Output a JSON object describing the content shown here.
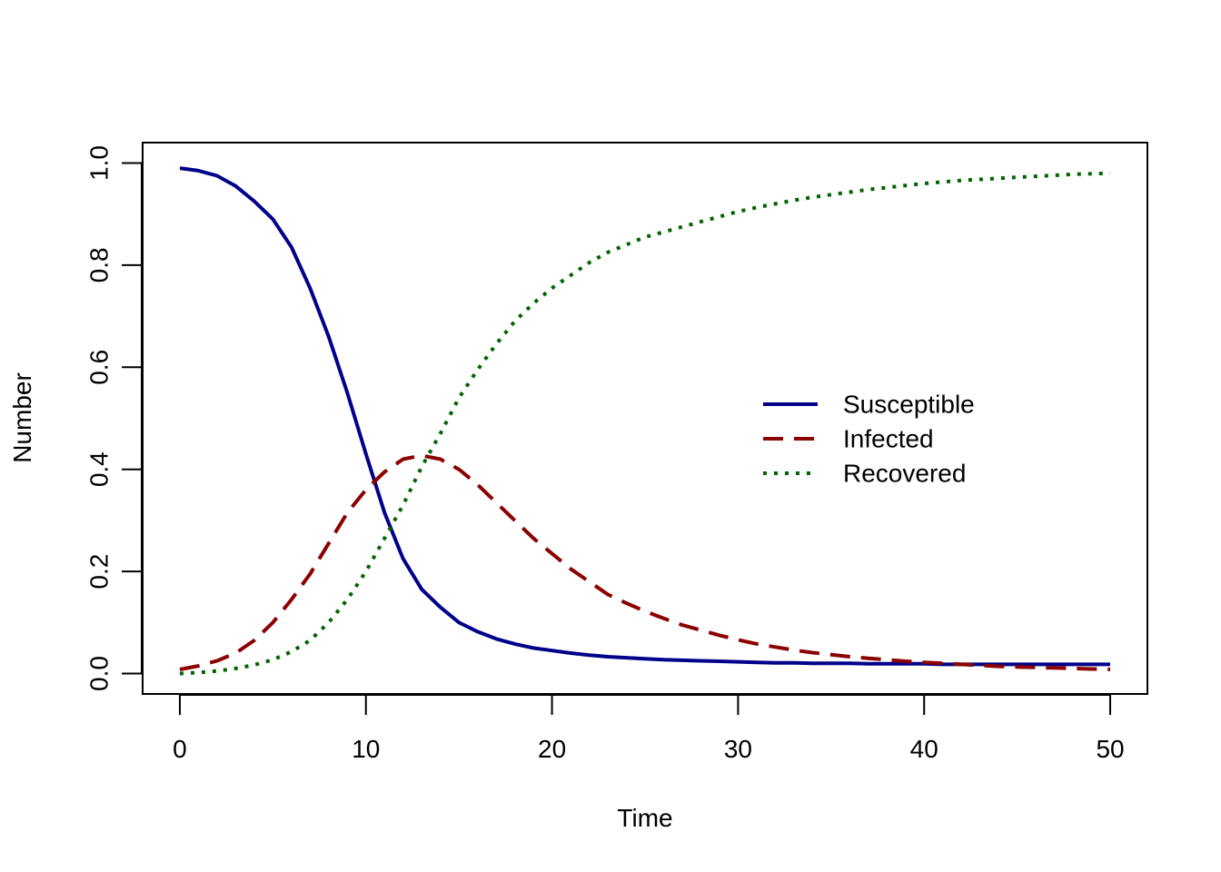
{
  "chart_data": {
    "type": "line",
    "title": "",
    "xlabel": "Time",
    "ylabel": "Number",
    "xlim": [
      -2,
      52
    ],
    "ylim": [
      -0.04,
      1.04
    ],
    "xticks": [
      0,
      10,
      20,
      30,
      40,
      50
    ],
    "xtick_labels": [
      "0",
      "10",
      "20",
      "30",
      "40",
      "50"
    ],
    "yticks": [
      0.0,
      0.2,
      0.4,
      0.6,
      0.8,
      1.0
    ],
    "ytick_labels": [
      "0.0",
      "0.2",
      "0.4",
      "0.6",
      "0.8",
      "1.0"
    ],
    "grid": false,
    "legend_position": "right",
    "x": [
      0,
      1,
      2,
      3,
      4,
      5,
      6,
      7,
      8,
      9,
      10,
      11,
      12,
      13,
      14,
      15,
      16,
      17,
      18,
      19,
      20,
      21,
      22,
      23,
      24,
      25,
      26,
      27,
      28,
      29,
      30,
      31,
      32,
      33,
      34,
      35,
      36,
      37,
      38,
      39,
      40,
      41,
      42,
      43,
      44,
      45,
      46,
      47,
      48,
      49,
      50
    ],
    "series": [
      {
        "name": "Susceptible",
        "color": "#00008B",
        "dash": "solid",
        "values": [
          0.99,
          0.985,
          0.975,
          0.955,
          0.925,
          0.89,
          0.835,
          0.755,
          0.66,
          0.55,
          0.43,
          0.315,
          0.225,
          0.165,
          0.13,
          0.1,
          0.082,
          0.068,
          0.058,
          0.05,
          0.045,
          0.04,
          0.036,
          0.033,
          0.031,
          0.029,
          0.027,
          0.026,
          0.025,
          0.024,
          0.023,
          0.022,
          0.021,
          0.021,
          0.02,
          0.02,
          0.02,
          0.019,
          0.019,
          0.019,
          0.019,
          0.018,
          0.018,
          0.018,
          0.018,
          0.018,
          0.018,
          0.018,
          0.018,
          0.018,
          0.018
        ]
      },
      {
        "name": "Infected",
        "color": "#8B0000",
        "dash": "dashed",
        "values": [
          0.008,
          0.015,
          0.025,
          0.04,
          0.065,
          0.1,
          0.145,
          0.195,
          0.255,
          0.315,
          0.36,
          0.395,
          0.42,
          0.427,
          0.42,
          0.4,
          0.37,
          0.335,
          0.3,
          0.265,
          0.235,
          0.205,
          0.18,
          0.155,
          0.138,
          0.122,
          0.108,
          0.095,
          0.085,
          0.075,
          0.066,
          0.058,
          0.052,
          0.046,
          0.041,
          0.037,
          0.033,
          0.03,
          0.027,
          0.024,
          0.022,
          0.02,
          0.018,
          0.016,
          0.014,
          0.013,
          0.012,
          0.011,
          0.01,
          0.009,
          0.008
        ]
      },
      {
        "name": "Recovered",
        "color": "#006400",
        "dash": "dotted",
        "values": [
          0.0,
          0.002,
          0.005,
          0.01,
          0.017,
          0.027,
          0.043,
          0.065,
          0.1,
          0.145,
          0.2,
          0.265,
          0.33,
          0.405,
          0.47,
          0.54,
          0.595,
          0.645,
          0.69,
          0.725,
          0.755,
          0.78,
          0.805,
          0.825,
          0.84,
          0.855,
          0.865,
          0.875,
          0.885,
          0.895,
          0.905,
          0.913,
          0.92,
          0.927,
          0.933,
          0.938,
          0.943,
          0.948,
          0.952,
          0.956,
          0.96,
          0.963,
          0.966,
          0.968,
          0.97,
          0.972,
          0.974,
          0.976,
          0.978,
          0.979,
          0.98
        ]
      }
    ]
  }
}
